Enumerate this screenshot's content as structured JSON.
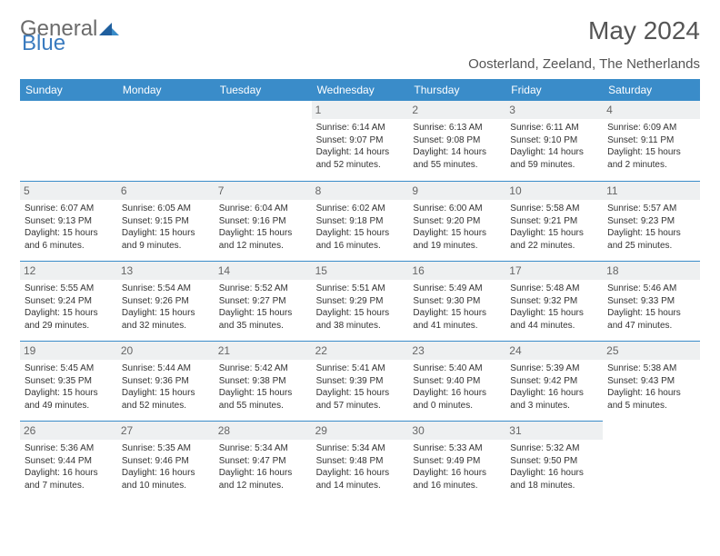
{
  "brand": {
    "part1": "General",
    "part2": "Blue"
  },
  "title": "May 2024",
  "location": "Oosterland, Zeeland, The Netherlands",
  "colors": {
    "header_bg": "#3a8cc9",
    "header_text": "#ffffff",
    "daynum_bg": "#eef0f1",
    "daynum_text": "#666666",
    "border": "#3a8cc9",
    "body_text": "#333333",
    "title_text": "#555555",
    "brand_gray": "#6b6b6b",
    "brand_blue": "#3a7bbf"
  },
  "dayNames": [
    "Sunday",
    "Monday",
    "Tuesday",
    "Wednesday",
    "Thursday",
    "Friday",
    "Saturday"
  ],
  "leadingBlanks": 3,
  "days": [
    {
      "n": "1",
      "sunrise": "6:14 AM",
      "sunset": "9:07 PM",
      "daylight": "14 hours and 52 minutes."
    },
    {
      "n": "2",
      "sunrise": "6:13 AM",
      "sunset": "9:08 PM",
      "daylight": "14 hours and 55 minutes."
    },
    {
      "n": "3",
      "sunrise": "6:11 AM",
      "sunset": "9:10 PM",
      "daylight": "14 hours and 59 minutes."
    },
    {
      "n": "4",
      "sunrise": "6:09 AM",
      "sunset": "9:11 PM",
      "daylight": "15 hours and 2 minutes."
    },
    {
      "n": "5",
      "sunrise": "6:07 AM",
      "sunset": "9:13 PM",
      "daylight": "15 hours and 6 minutes."
    },
    {
      "n": "6",
      "sunrise": "6:05 AM",
      "sunset": "9:15 PM",
      "daylight": "15 hours and 9 minutes."
    },
    {
      "n": "7",
      "sunrise": "6:04 AM",
      "sunset": "9:16 PM",
      "daylight": "15 hours and 12 minutes."
    },
    {
      "n": "8",
      "sunrise": "6:02 AM",
      "sunset": "9:18 PM",
      "daylight": "15 hours and 16 minutes."
    },
    {
      "n": "9",
      "sunrise": "6:00 AM",
      "sunset": "9:20 PM",
      "daylight": "15 hours and 19 minutes."
    },
    {
      "n": "10",
      "sunrise": "5:58 AM",
      "sunset": "9:21 PM",
      "daylight": "15 hours and 22 minutes."
    },
    {
      "n": "11",
      "sunrise": "5:57 AM",
      "sunset": "9:23 PM",
      "daylight": "15 hours and 25 minutes."
    },
    {
      "n": "12",
      "sunrise": "5:55 AM",
      "sunset": "9:24 PM",
      "daylight": "15 hours and 29 minutes."
    },
    {
      "n": "13",
      "sunrise": "5:54 AM",
      "sunset": "9:26 PM",
      "daylight": "15 hours and 32 minutes."
    },
    {
      "n": "14",
      "sunrise": "5:52 AM",
      "sunset": "9:27 PM",
      "daylight": "15 hours and 35 minutes."
    },
    {
      "n": "15",
      "sunrise": "5:51 AM",
      "sunset": "9:29 PM",
      "daylight": "15 hours and 38 minutes."
    },
    {
      "n": "16",
      "sunrise": "5:49 AM",
      "sunset": "9:30 PM",
      "daylight": "15 hours and 41 minutes."
    },
    {
      "n": "17",
      "sunrise": "5:48 AM",
      "sunset": "9:32 PM",
      "daylight": "15 hours and 44 minutes."
    },
    {
      "n": "18",
      "sunrise": "5:46 AM",
      "sunset": "9:33 PM",
      "daylight": "15 hours and 47 minutes."
    },
    {
      "n": "19",
      "sunrise": "5:45 AM",
      "sunset": "9:35 PM",
      "daylight": "15 hours and 49 minutes."
    },
    {
      "n": "20",
      "sunrise": "5:44 AM",
      "sunset": "9:36 PM",
      "daylight": "15 hours and 52 minutes."
    },
    {
      "n": "21",
      "sunrise": "5:42 AM",
      "sunset": "9:38 PM",
      "daylight": "15 hours and 55 minutes."
    },
    {
      "n": "22",
      "sunrise": "5:41 AM",
      "sunset": "9:39 PM",
      "daylight": "15 hours and 57 minutes."
    },
    {
      "n": "23",
      "sunrise": "5:40 AM",
      "sunset": "9:40 PM",
      "daylight": "16 hours and 0 minutes."
    },
    {
      "n": "24",
      "sunrise": "5:39 AM",
      "sunset": "9:42 PM",
      "daylight": "16 hours and 3 minutes."
    },
    {
      "n": "25",
      "sunrise": "5:38 AM",
      "sunset": "9:43 PM",
      "daylight": "16 hours and 5 minutes."
    },
    {
      "n": "26",
      "sunrise": "5:36 AM",
      "sunset": "9:44 PM",
      "daylight": "16 hours and 7 minutes."
    },
    {
      "n": "27",
      "sunrise": "5:35 AM",
      "sunset": "9:46 PM",
      "daylight": "16 hours and 10 minutes."
    },
    {
      "n": "28",
      "sunrise": "5:34 AM",
      "sunset": "9:47 PM",
      "daylight": "16 hours and 12 minutes."
    },
    {
      "n": "29",
      "sunrise": "5:34 AM",
      "sunset": "9:48 PM",
      "daylight": "16 hours and 14 minutes."
    },
    {
      "n": "30",
      "sunrise": "5:33 AM",
      "sunset": "9:49 PM",
      "daylight": "16 hours and 16 minutes."
    },
    {
      "n": "31",
      "sunrise": "5:32 AM",
      "sunset": "9:50 PM",
      "daylight": "16 hours and 18 minutes."
    }
  ],
  "labels": {
    "sunrise": "Sunrise:",
    "sunset": "Sunset:",
    "daylight": "Daylight:"
  }
}
